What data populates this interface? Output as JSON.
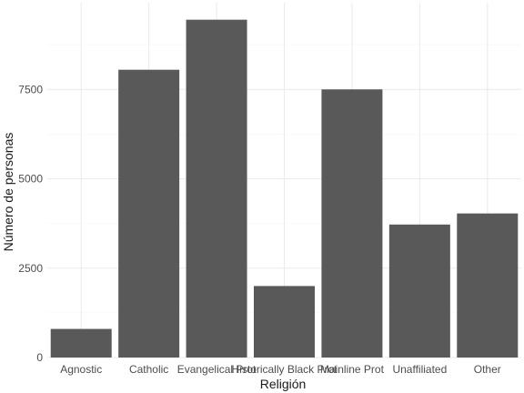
{
  "chart_data": {
    "type": "bar",
    "categories": [
      "Agnostic",
      "Catholic",
      "Evangelical Prot",
      "Historically Black Prot",
      "Mainline Prot",
      "Unaffiliated",
      "Other"
    ],
    "values": [
      800,
      8050,
      9450,
      2000,
      7500,
      3720,
      4030
    ],
    "title": "",
    "xlabel": "Religión",
    "ylabel": "Número de personas",
    "ylim": [
      0,
      9925
    ],
    "yticks": [
      0,
      2500,
      5000,
      7500
    ],
    "grid": true,
    "legend": "none",
    "colors": {
      "bar": "#595959",
      "grid_major": "#ebebeb",
      "grid_minor": "#f5f5f5",
      "text": "#4d4d4d"
    }
  }
}
